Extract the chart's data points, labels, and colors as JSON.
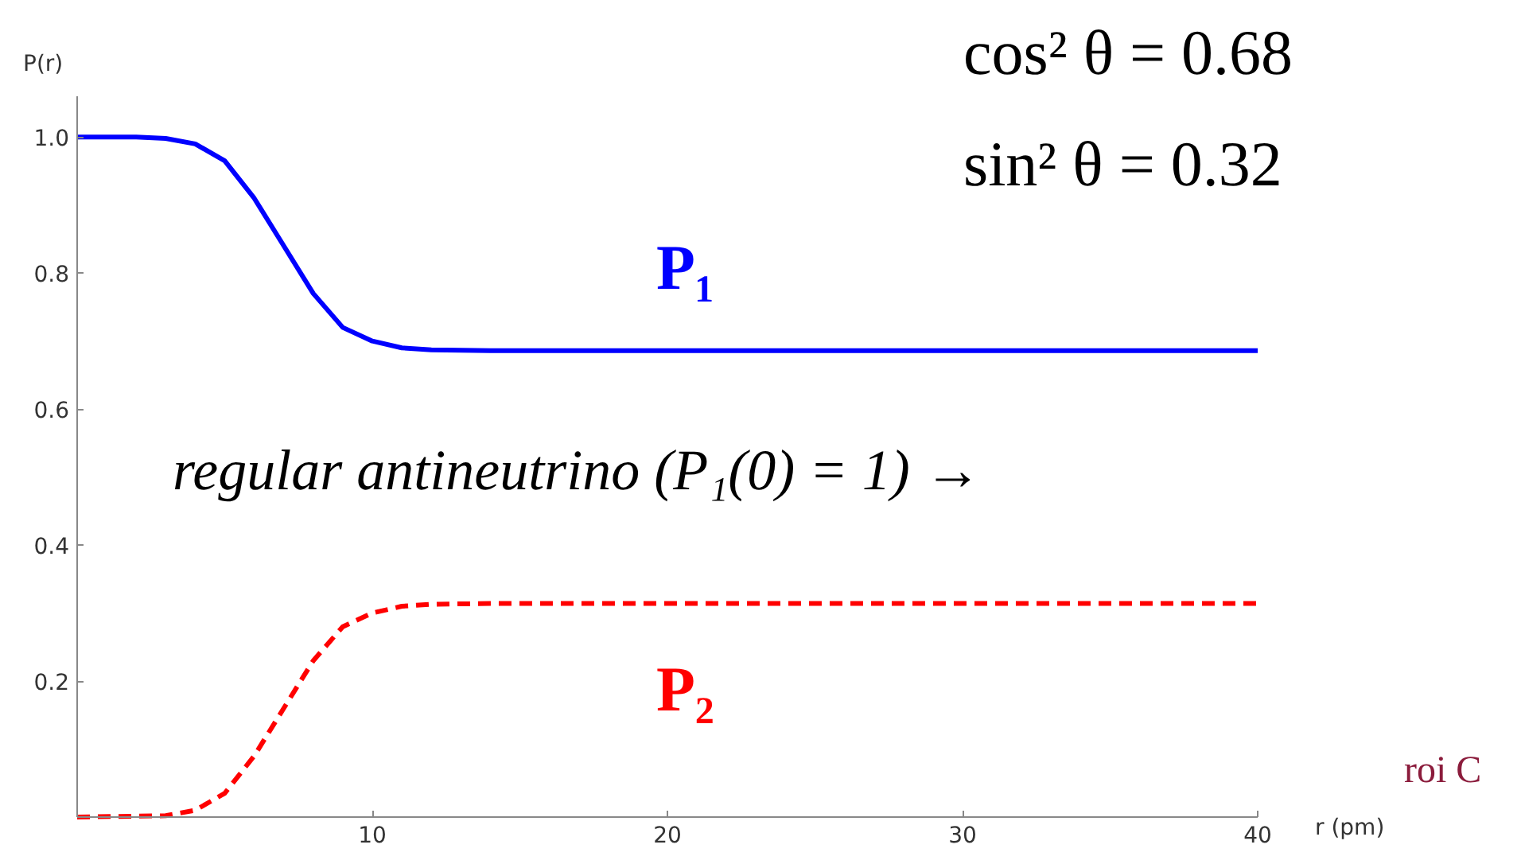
{
  "chart_data": {
    "type": "line",
    "xlabel": "r (pm)",
    "ylabel": "P(r)",
    "xlim": [
      0,
      40
    ],
    "ylim": [
      0,
      1.06
    ],
    "xticks": [
      10,
      20,
      30,
      40
    ],
    "yticks": [
      0.2,
      0.4,
      0.6,
      0.8,
      {
        "value": 1.0,
        "label": "1.0"
      }
    ],
    "grid": false,
    "legend": false,
    "series": [
      {
        "name": "P₁",
        "color": "#0000ff",
        "line_style": "solid",
        "x": [
          0,
          2,
          3,
          4,
          5,
          6,
          7,
          8,
          9,
          10,
          11,
          12,
          14,
          20,
          30,
          40
        ],
        "values": [
          1.0,
          1.0,
          0.998,
          0.99,
          0.965,
          0.91,
          0.84,
          0.77,
          0.72,
          0.7,
          0.69,
          0.687,
          0.686,
          0.686,
          0.686,
          0.686
        ]
      },
      {
        "name": "P₂",
        "color": "#ff0000",
        "line_style": "dashed",
        "x": [
          0,
          3,
          4,
          5,
          6,
          7,
          8,
          9,
          10,
          11,
          12,
          14,
          20,
          30,
          40
        ],
        "values": [
          0,
          0.002,
          0.01,
          0.035,
          0.09,
          0.16,
          0.23,
          0.28,
          0.3,
          0.31,
          0.313,
          0.314,
          0.314,
          0.314,
          0.314
        ]
      }
    ],
    "annotations": [
      "cos² θ = 0.68",
      "sin² θ = 0.32",
      "regular antineutrino (P₁(0) = 1) →",
      "roi C"
    ]
  }
}
